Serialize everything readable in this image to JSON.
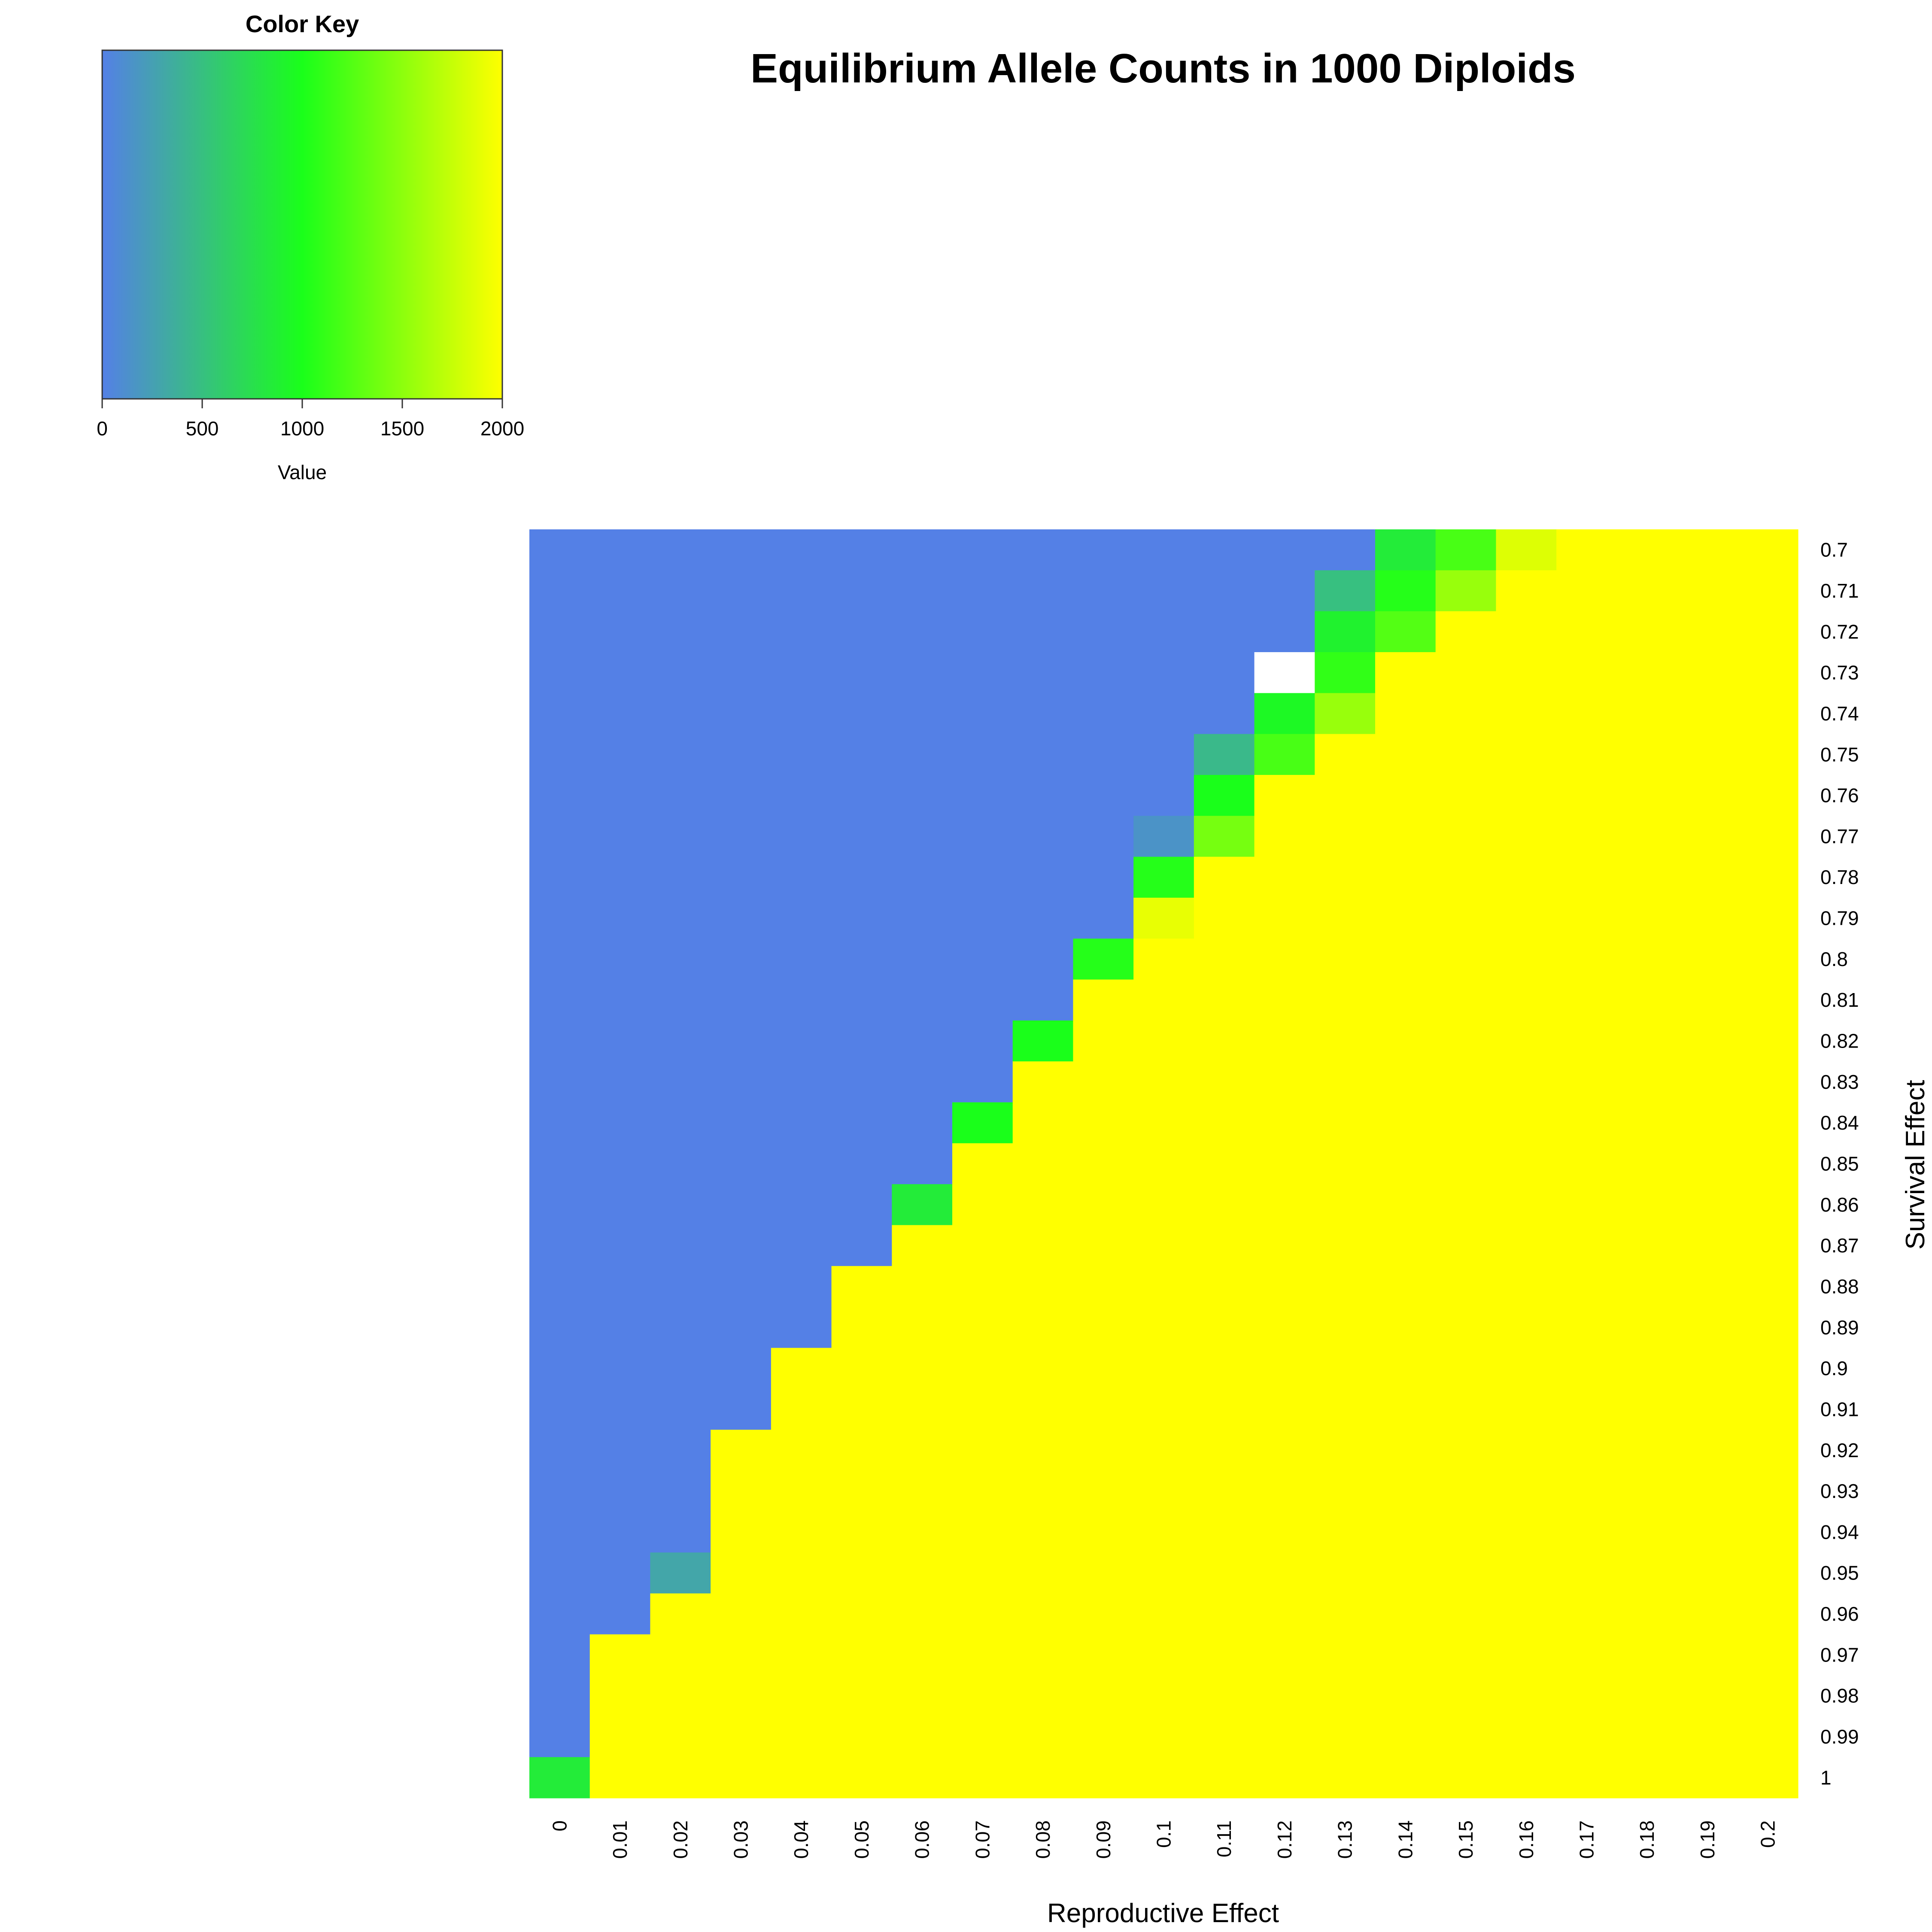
{
  "chart_data": {
    "type": "heatmap",
    "title": "Equilibrium Allele Counts in 1000 Diploids",
    "xlabel": "Reproductive Effect",
    "ylabel": "Survival Effect",
    "x_ticks": [
      "0",
      "0.01",
      "0.02",
      "0.03",
      "0.04",
      "0.05",
      "0.06",
      "0.07",
      "0.08",
      "0.09",
      "0.1",
      "0.11",
      "0.12",
      "0.13",
      "0.14",
      "0.15",
      "0.16",
      "0.17",
      "0.18",
      "0.19",
      "0.2"
    ],
    "y_ticks": [
      "0.7",
      "0.71",
      "0.72",
      "0.73",
      "0.74",
      "0.75",
      "0.76",
      "0.77",
      "0.78",
      "0.79",
      "0.8",
      "0.81",
      "0.82",
      "0.83",
      "0.84",
      "0.85",
      "0.86",
      "0.87",
      "0.88",
      "0.89",
      "0.9",
      "0.91",
      "0.92",
      "0.93",
      "0.94",
      "0.95",
      "0.96",
      "0.97",
      "0.98",
      "0.99",
      "1"
    ],
    "boundary_col_by_row": [
      14,
      13,
      13,
      12,
      12,
      11,
      11,
      10,
      10,
      10,
      9,
      9,
      8,
      8,
      7,
      7,
      6,
      6,
      5,
      5,
      4,
      4,
      3,
      3,
      3,
      2,
      2,
      1,
      1,
      1,
      0
    ],
    "transition_cells": [
      {
        "y": "0.7",
        "x": "0.14",
        "value": 850
      },
      {
        "y": "0.7",
        "x": "0.15",
        "value": 1200
      },
      {
        "y": "0.7",
        "x": "0.16",
        "value": 1850
      },
      {
        "y": "0.71",
        "x": "0.13",
        "value": 500
      },
      {
        "y": "0.71",
        "x": "0.14",
        "value": 1050
      },
      {
        "y": "0.71",
        "x": "0.15",
        "value": 1550
      },
      {
        "y": "0.72",
        "x": "0.13",
        "value": 900
      },
      {
        "y": "0.72",
        "x": "0.14",
        "value": 1250
      },
      {
        "y": "0.73",
        "x": "0.12",
        "value": null
      },
      {
        "y": "0.73",
        "x": "0.13",
        "value": 1100
      },
      {
        "y": "0.74",
        "x": "0.12",
        "value": 950
      },
      {
        "y": "0.74",
        "x": "0.13",
        "value": 1550
      },
      {
        "y": "0.75",
        "x": "0.11",
        "value": 450
      },
      {
        "y": "0.75",
        "x": "0.12",
        "value": 1200
      },
      {
        "y": "0.76",
        "x": "0.11",
        "value": 1000
      },
      {
        "y": "0.77",
        "x": "0.1",
        "value": 150
      },
      {
        "y": "0.77",
        "x": "0.11",
        "value": 1400
      },
      {
        "y": "0.78",
        "x": "0.1",
        "value": 1050
      },
      {
        "y": "0.79",
        "x": "0.1",
        "value": 1900
      },
      {
        "y": "0.8",
        "x": "0.09",
        "value": 1050
      },
      {
        "y": "0.82",
        "x": "0.08",
        "value": 1000
      },
      {
        "y": "0.84",
        "x": "0.07",
        "value": 1000
      },
      {
        "y": "0.86",
        "x": "0.06",
        "value": 850
      },
      {
        "y": "0.95",
        "x": "0.02",
        "value": 300
      },
      {
        "y": "1",
        "x": "0",
        "value": 850
      }
    ],
    "low_value": 0,
    "high_value": 2000,
    "color_key": {
      "title": "Color Key",
      "xlabel": "Value",
      "range": [
        0,
        2000
      ],
      "ticks": [
        "0",
        "500",
        "1000",
        "1500",
        "2000"
      ],
      "colors": [
        "#5480e6",
        "#1aff1a",
        "#ffff00"
      ]
    },
    "missing_color": "#ffffff",
    "grid": false
  }
}
